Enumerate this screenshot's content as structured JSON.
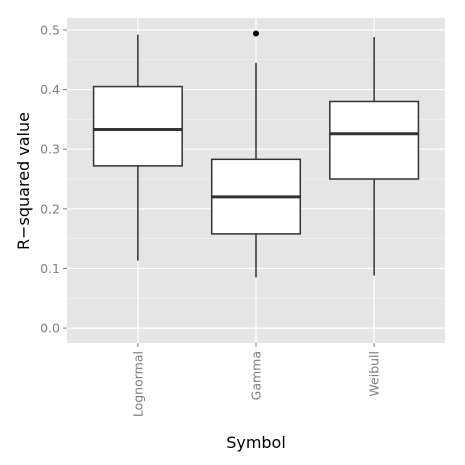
{
  "chart_data": {
    "type": "box",
    "xlabel": "Symbol",
    "ylabel": "R−squared value",
    "ylim": [
      -0.025,
      0.52
    ],
    "yticks": [
      0.0,
      0.1,
      0.2,
      0.3,
      0.4,
      0.5
    ],
    "ytick_labels": [
      "0.0",
      "0.1",
      "0.2",
      "0.3",
      "0.4",
      "0.5"
    ],
    "categories": [
      "Lognormal",
      "Gamma",
      "Weibull"
    ],
    "boxes": [
      {
        "category": "Lognormal",
        "whisker_low": 0.113,
        "q1": 0.272,
        "median": 0.333,
        "q3": 0.405,
        "whisker_high": 0.492,
        "outliers": []
      },
      {
        "category": "Gamma",
        "whisker_low": 0.085,
        "q1": 0.158,
        "median": 0.22,
        "q3": 0.283,
        "whisker_high": 0.445,
        "outliers": [
          0.494
        ]
      },
      {
        "category": "Weibull",
        "whisker_low": 0.088,
        "q1": 0.25,
        "median": 0.326,
        "q3": 0.38,
        "whisker_high": 0.488,
        "outliers": []
      }
    ],
    "grid": true,
    "colors": {
      "panel": "#e5e5e5",
      "grid_major": "#ffffff",
      "grid_minor": "#f2f2f2",
      "box_fill": "#ffffff",
      "box_stroke": "#333333",
      "tick_text": "#7f7f7f"
    }
  }
}
